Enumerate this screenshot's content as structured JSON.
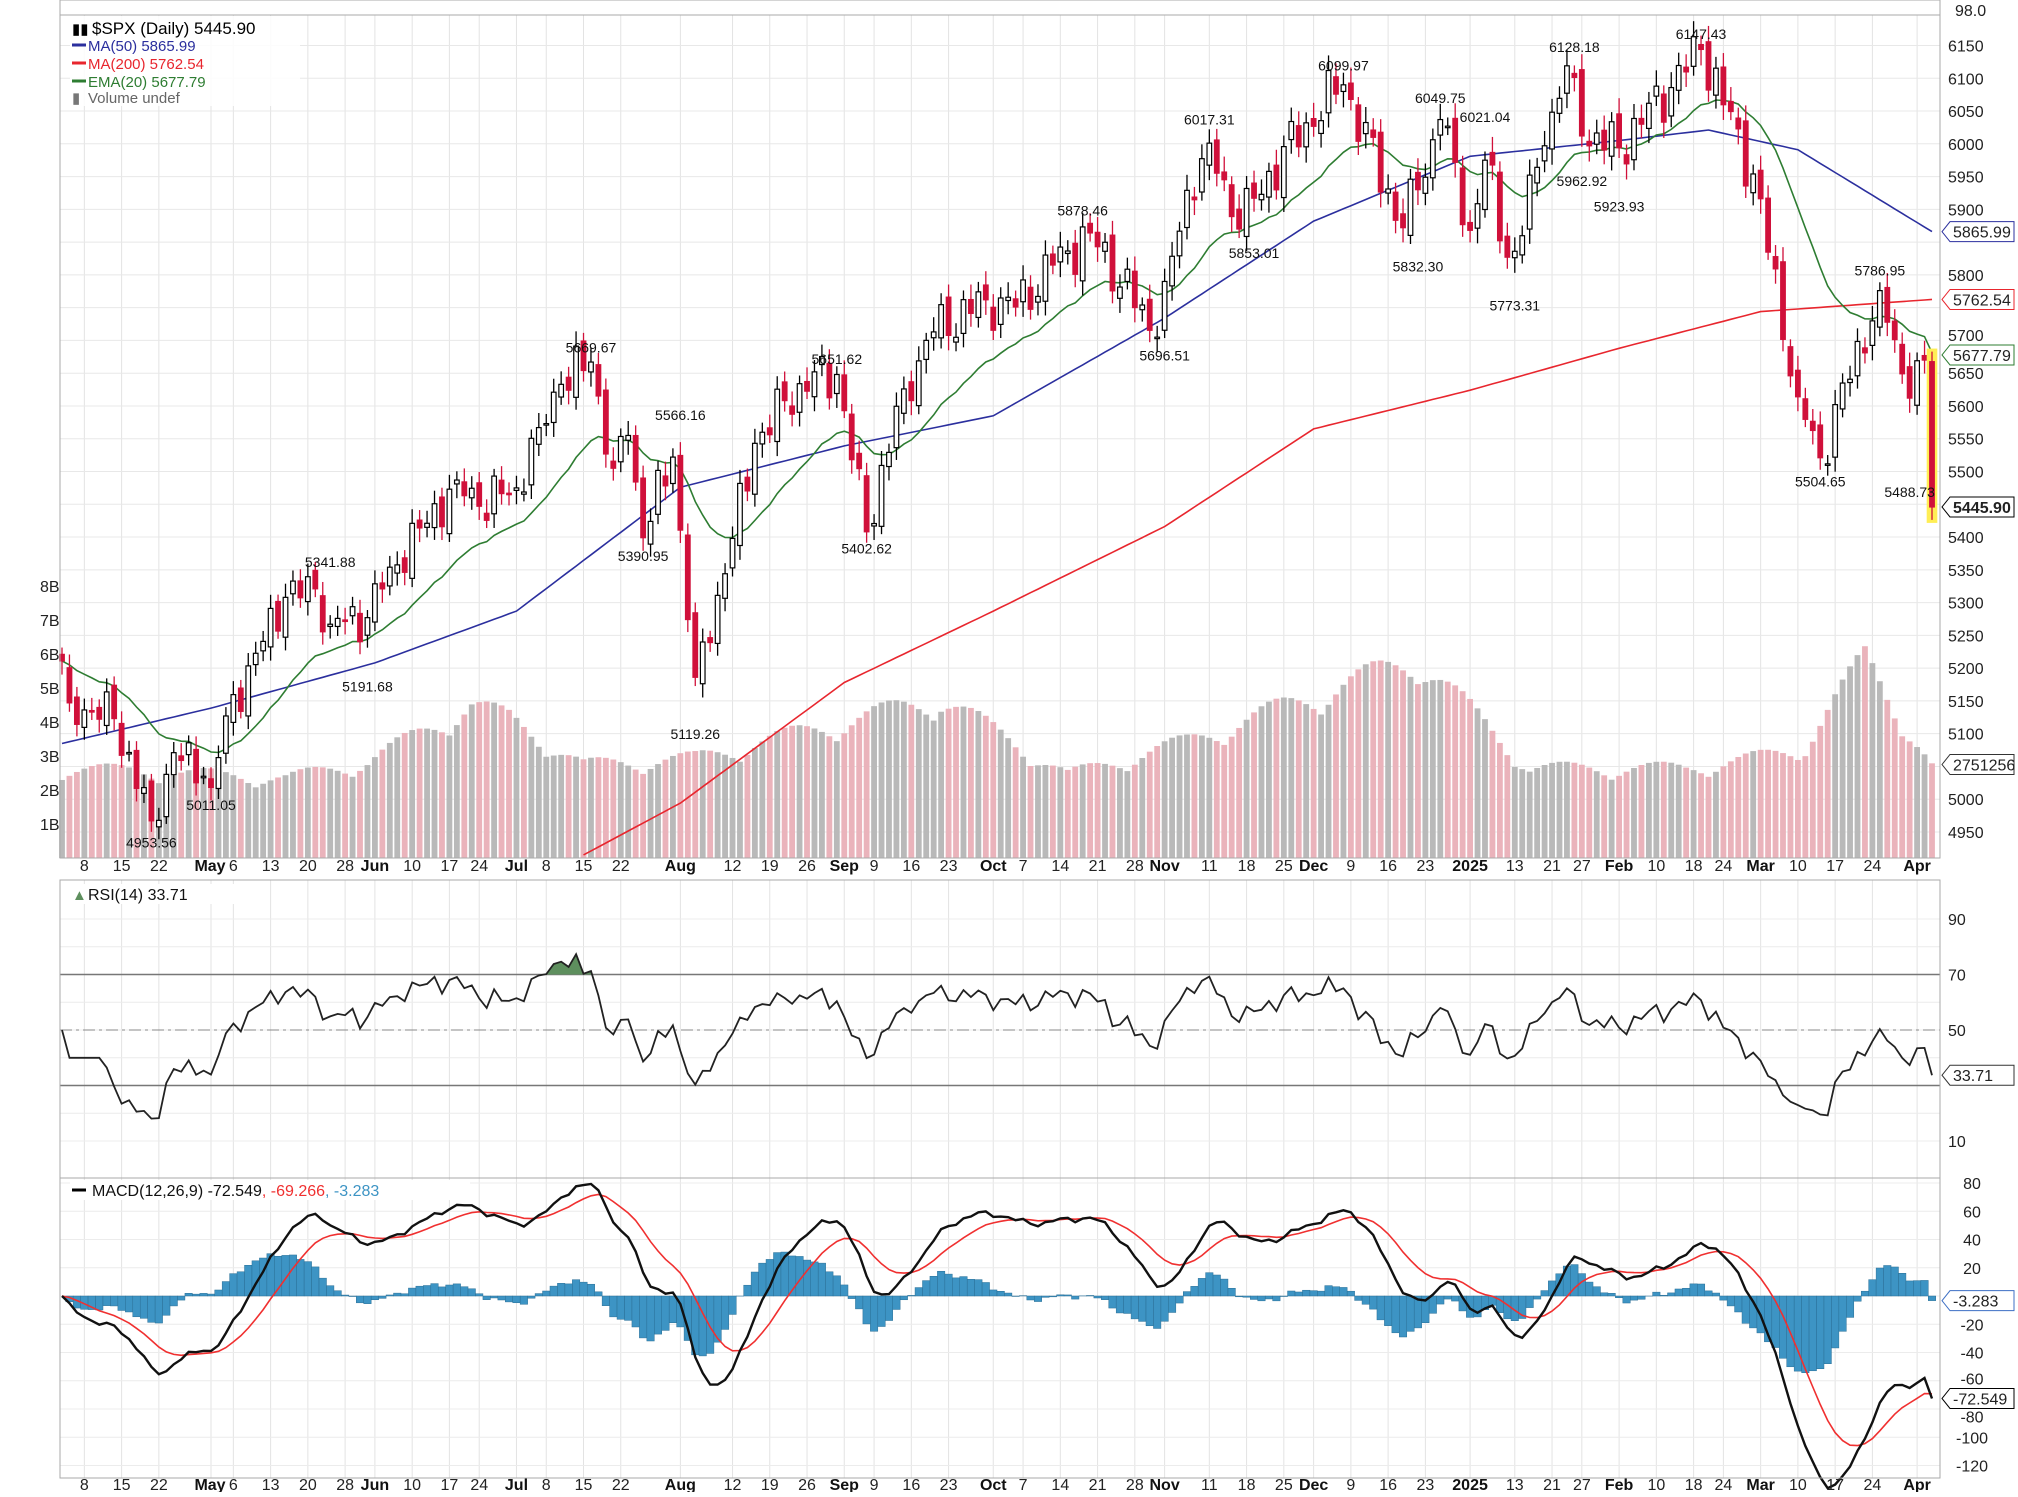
{
  "chart_data": {
    "type": "candlestick",
    "symbol": "$SPX",
    "legend": {
      "title": "$SPX (Daily) 5445.90",
      "ma50": "MA(50) 5865.99",
      "ma200": "MA(200) 5762.54",
      "ema20": "EMA(20) 5677.79",
      "volume": "Volume undef",
      "rsi": "RSI(14) 33.71",
      "macd_name": "MACD(12,26,9) -72.549",
      "macd_signal": ", -69.266",
      "macd_hist": ", -3.283"
    },
    "colors": {
      "up": "#000000",
      "down": "#d0103a",
      "ma50": "#2b2f9e",
      "ma200": "#e8262e",
      "ema20": "#2e7d32",
      "volume_up": "#b9b9b9",
      "volume_down": "#eab3bb",
      "rsi_fill": "#5e8f5e",
      "macd_hist": "#3d94c4",
      "macd_signal": "#f03030",
      "last_highlight": "#ffee55"
    },
    "date_range": [
      "2024-04-03",
      "2025-04-03"
    ],
    "close_keypoints": [
      [
        "2024-04-03",
        5211
      ],
      [
        "2024-04-04",
        5147
      ],
      [
        "2024-04-12",
        5123
      ],
      [
        "2024-04-19",
        4967
      ],
      [
        "2024-04-24",
        5071
      ],
      [
        "2024-04-30",
        5035
      ],
      [
        "2024-05-01",
        5018
      ],
      [
        "2024-05-03",
        5127
      ],
      [
        "2024-05-15",
        5308
      ],
      [
        "2024-05-21",
        5321
      ],
      [
        "2024-05-23",
        5267
      ],
      [
        "2024-05-31",
        5277
      ],
      [
        "2024-06-05",
        5354
      ],
      [
        "2024-06-12",
        5421
      ],
      [
        "2024-06-18",
        5487
      ],
      [
        "2024-06-24",
        5447
      ],
      [
        "2024-07-01",
        5475
      ],
      [
        "2024-07-05",
        5567
      ],
      [
        "2024-07-10",
        5633
      ],
      [
        "2024-07-16",
        5667
      ],
      [
        "2024-07-19",
        5505
      ],
      [
        "2024-07-23",
        5555
      ],
      [
        "2024-07-25",
        5399
      ],
      [
        "2024-07-31",
        5522
      ],
      [
        "2024-08-05",
        5186
      ],
      [
        "2024-08-09",
        5344
      ],
      [
        "2024-08-15",
        5543
      ],
      [
        "2024-08-23",
        5634
      ],
      [
        "2024-08-30",
        5648
      ],
      [
        "2024-09-06",
        5408
      ],
      [
        "2024-09-13",
        5626
      ],
      [
        "2024-09-19",
        5713
      ],
      [
        "2024-09-30",
        5762
      ],
      [
        "2024-10-04",
        5751
      ],
      [
        "2024-10-11",
        5815
      ],
      [
        "2024-10-18",
        5864
      ],
      [
        "2024-10-31",
        5705
      ],
      [
        "2024-11-06",
        5929
      ],
      [
        "2024-11-11",
        6001
      ],
      [
        "2024-11-15",
        5870
      ],
      [
        "2024-11-19",
        5917
      ],
      [
        "2024-11-29",
        6032
      ],
      [
        "2024-12-06",
        6090
      ],
      [
        "2024-12-18",
        5872
      ],
      [
        "2024-12-20",
        5930
      ],
      [
        "2024-12-26",
        6037
      ],
      [
        "2025-01-02",
        5868
      ],
      [
        "2025-01-06",
        5975
      ],
      [
        "2025-01-10",
        5827
      ],
      [
        "2025-01-13",
        5836
      ],
      [
        "2025-01-17",
        5997
      ],
      [
        "2025-01-23",
        6119
      ],
      [
        "2025-01-27",
        6012
      ],
      [
        "2025-02-03",
        5994
      ],
      [
        "2025-02-19",
        6144
      ],
      [
        "2025-02-28",
        5954
      ],
      [
        "2025-03-10",
        5614
      ],
      [
        "2025-03-13",
        5521
      ],
      [
        "2025-03-25",
        5776
      ],
      [
        "2025-03-31",
        5612
      ],
      [
        "2025-04-02",
        5670
      ],
      [
        "2025-04-03",
        5445.9
      ]
    ],
    "ma50_keypoints": [
      [
        "2024-04-03",
        5085
      ],
      [
        "2024-05-01",
        5139
      ],
      [
        "2024-06-03",
        5208
      ],
      [
        "2024-07-01",
        5287
      ],
      [
        "2024-08-01",
        5476
      ],
      [
        "2024-09-03",
        5539
      ],
      [
        "2024-10-01",
        5585
      ],
      [
        "2024-11-01",
        5734
      ],
      [
        "2024-12-02",
        5882
      ],
      [
        "2025-01-02",
        5981
      ],
      [
        "2025-02-03",
        6005
      ],
      [
        "2025-02-20",
        6021
      ],
      [
        "2025-03-10",
        5991
      ],
      [
        "2025-04-03",
        5865.99
      ]
    ],
    "ma200_keypoints": [
      [
        "2024-07-15",
        4915
      ],
      [
        "2024-08-01",
        4994
      ],
      [
        "2024-09-03",
        5178
      ],
      [
        "2024-10-01",
        5287
      ],
      [
        "2024-11-01",
        5416
      ],
      [
        "2024-12-02",
        5565
      ],
      [
        "2025-01-02",
        5624
      ],
      [
        "2025-02-03",
        5688
      ],
      [
        "2025-03-03",
        5744
      ],
      [
        "2025-04-03",
        5762.54
      ]
    ],
    "volume_keypoints_B": [
      [
        "2024-04-03",
        2.7
      ],
      [
        "2024-04-19",
        2.6
      ],
      [
        "2024-05-15",
        2.4
      ],
      [
        "2024-05-31",
        2.9
      ],
      [
        "2024-06-21",
        4.6
      ],
      [
        "2024-06-28",
        4.2
      ],
      [
        "2024-07-15",
        2.8
      ],
      [
        "2024-08-05",
        3.0
      ],
      [
        "2024-09-20",
        4.8
      ],
      [
        "2024-10-15",
        2.5
      ],
      [
        "2024-11-06",
        3.5
      ],
      [
        "2024-12-20",
        6.0
      ],
      [
        "2025-01-15",
        2.7
      ],
      [
        "2025-02-14",
        2.7
      ],
      [
        "2025-03-10",
        3.2
      ],
      [
        "2025-03-21",
        6.0
      ],
      [
        "2025-04-03",
        2.75
      ]
    ],
    "annotations": [
      {
        "date": "2024-04-19",
        "text": "4953.56",
        "value": 4953.56,
        "pos": "below"
      },
      {
        "date": "2024-05-01",
        "text": "5011.05",
        "value": 5011.05,
        "pos": "below"
      },
      {
        "date": "2024-05-23",
        "text": "5341.88",
        "value": 5341.88,
        "pos": "above"
      },
      {
        "date": "2024-05-31",
        "text": "5191.68",
        "value": 5191.68,
        "pos": "below"
      },
      {
        "date": "2024-07-16",
        "text": "5669.67",
        "value": 5669.67,
        "pos": "above"
      },
      {
        "date": "2024-07-25",
        "text": "5390.95",
        "value": 5390.95,
        "pos": "below"
      },
      {
        "date": "2024-08-01",
        "text": "5566.16",
        "value": 5566.16,
        "pos": "above"
      },
      {
        "date": "2024-08-05",
        "text": "5119.26",
        "value": 5119.26,
        "pos": "below"
      },
      {
        "date": "2024-08-30",
        "text": "5651.62",
        "value": 5651.62,
        "pos": "above"
      },
      {
        "date": "2024-09-06",
        "text": "5402.62",
        "value": 5402.62,
        "pos": "below"
      },
      {
        "date": "2024-10-17",
        "text": "5878.46",
        "value": 5878.46,
        "pos": "above"
      },
      {
        "date": "2024-11-01",
        "text": "5696.51",
        "value": 5696.51,
        "pos": "below"
      },
      {
        "date": "2024-11-11",
        "text": "6017.31",
        "value": 6017.31,
        "pos": "above"
      },
      {
        "date": "2024-11-19",
        "text": "5853.01",
        "value": 5853.01,
        "pos": "below"
      },
      {
        "date": "2024-12-06",
        "text": "6099.97",
        "value": 6099.97,
        "pos": "above"
      },
      {
        "date": "2024-12-20",
        "text": "5832.30",
        "value": 5832.3,
        "pos": "below"
      },
      {
        "date": "2024-12-26",
        "text": "6049.75",
        "value": 6049.75,
        "pos": "above"
      },
      {
        "date": "2025-01-06",
        "text": "6021.04",
        "value": 6021.04,
        "pos": "above"
      },
      {
        "date": "2025-01-13",
        "text": "5773.31",
        "value": 5773.31,
        "pos": "below"
      },
      {
        "date": "2025-01-24",
        "text": "6128.18",
        "value": 6128.18,
        "pos": "above"
      },
      {
        "date": "2025-01-27",
        "text": "5962.92",
        "value": 5962.92,
        "pos": "below"
      },
      {
        "date": "2025-02-03",
        "text": "5923.93",
        "value": 5923.93,
        "pos": "below"
      },
      {
        "date": "2025-02-19",
        "text": "6147.43",
        "value": 6147.43,
        "pos": "above"
      },
      {
        "date": "2025-03-13",
        "text": "5504.65",
        "value": 5504.65,
        "pos": "below"
      },
      {
        "date": "2025-03-25",
        "text": "5786.95",
        "value": 5786.95,
        "pos": "above"
      },
      {
        "date": "2025-03-31",
        "text": "5488.73",
        "value": 5488.73,
        "pos": "below"
      }
    ],
    "price_axis": {
      "ticks": [
        6150,
        6100,
        6050,
        6000,
        5950,
        5900,
        5850,
        5800,
        5750,
        5700,
        5650,
        5600,
        5550,
        5500,
        5450,
        5400,
        5350,
        5300,
        5250,
        5200,
        5150,
        5100,
        5050,
        5000,
        4950
      ],
      "labels": [
        "6150",
        "6100",
        "6050",
        "6000",
        "5950",
        "5900",
        "",
        "5800",
        "",
        "5700",
        "5650",
        "5600",
        "5550",
        "5500",
        "",
        "5400",
        "5350",
        "5300",
        "5250",
        "5200",
        "5150",
        "5100",
        "",
        "5000",
        "4950"
      ],
      "top_label": "98.0"
    },
    "volume_axis": {
      "ticks": [
        1,
        2,
        3,
        4,
        5,
        6,
        7,
        8
      ],
      "labels": [
        "1B",
        "2B",
        "3B",
        "4B",
        "5B",
        "6B",
        "7B",
        "8B"
      ]
    },
    "rsi_axis": {
      "ticks": [
        90,
        70,
        50,
        30,
        10
      ],
      "labels": [
        "90",
        "70",
        "50",
        "",
        "10"
      ]
    },
    "macd_axis": {
      "ticks": [
        80,
        60,
        40,
        20,
        0,
        -20,
        -40,
        -60,
        -80,
        -100,
        -120
      ],
      "labels": [
        "80",
        "60",
        "40",
        "20",
        "",
        "-20",
        "-40",
        "-60",
        "-80",
        "-100",
        "-120"
      ]
    },
    "tags": {
      "ma50": "5865.99",
      "ma200": "5762.54",
      "ema20": "5677.79",
      "last": "5445.90",
      "volume": "2751256",
      "rsi": "33.71",
      "macd_hist": "-3.283",
      "macd": "-72.549"
    },
    "x_ticks": [
      [
        "2024-04-08",
        "8",
        0
      ],
      [
        "2024-04-15",
        "15",
        0
      ],
      [
        "2024-04-22",
        "22",
        0
      ],
      [
        "2024-05-01",
        "May",
        1
      ],
      [
        "2024-05-06",
        "6",
        0
      ],
      [
        "2024-05-13",
        "13",
        0
      ],
      [
        "2024-05-20",
        "20",
        0
      ],
      [
        "2024-05-28",
        "28",
        0
      ],
      [
        "2024-06-03",
        "Jun",
        1
      ],
      [
        "2024-06-10",
        "10",
        0
      ],
      [
        "2024-06-17",
        "17",
        0
      ],
      [
        "2024-06-24",
        "24",
        0
      ],
      [
        "2024-07-01",
        "Jul",
        1
      ],
      [
        "2024-07-08",
        "8",
        0
      ],
      [
        "2024-07-15",
        "15",
        0
      ],
      [
        "2024-07-22",
        "22",
        0
      ],
      [
        "2024-08-01",
        "Aug",
        1
      ],
      [
        "2024-08-12",
        "12",
        0
      ],
      [
        "2024-08-19",
        "19",
        0
      ],
      [
        "2024-08-26",
        "26",
        0
      ],
      [
        "2024-09-03",
        "Sep",
        1
      ],
      [
        "2024-09-09",
        "9",
        0
      ],
      [
        "2024-09-16",
        "16",
        0
      ],
      [
        "2024-09-23",
        "23",
        0
      ],
      [
        "2024-10-01",
        "Oct",
        1
      ],
      [
        "2024-10-07",
        "7",
        0
      ],
      [
        "2024-10-14",
        "14",
        0
      ],
      [
        "2024-10-21",
        "21",
        0
      ],
      [
        "2024-10-28",
        "28",
        0
      ],
      [
        "2024-11-01",
        "Nov",
        1
      ],
      [
        "2024-11-11",
        "11",
        0
      ],
      [
        "2024-11-18",
        "18",
        0
      ],
      [
        "2024-11-25",
        "25",
        0
      ],
      [
        "2024-12-02",
        "Dec",
        1
      ],
      [
        "2024-12-09",
        "9",
        0
      ],
      [
        "2024-12-16",
        "16",
        0
      ],
      [
        "2024-12-23",
        "23",
        0
      ],
      [
        "2025-01-02",
        "2025",
        1
      ],
      [
        "2025-01-13",
        "13",
        0
      ],
      [
        "2025-01-21",
        "21",
        0
      ],
      [
        "2025-01-27",
        "27",
        0
      ],
      [
        "2025-02-03",
        "Feb",
        1
      ],
      [
        "2025-02-10",
        "10",
        0
      ],
      [
        "2025-02-18",
        "18",
        0
      ],
      [
        "2025-02-24",
        "24",
        0
      ],
      [
        "2025-03-03",
        "Mar",
        1
      ],
      [
        "2025-03-10",
        "10",
        0
      ],
      [
        "2025-03-17",
        "17",
        0
      ],
      [
        "2025-03-24",
        "24",
        0
      ],
      [
        "2025-04-01",
        "Apr",
        1
      ]
    ]
  }
}
